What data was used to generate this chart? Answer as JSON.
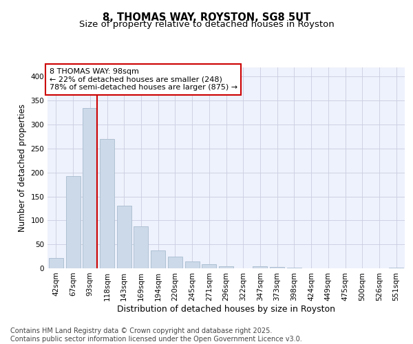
{
  "title": "8, THOMAS WAY, ROYSTON, SG8 5UT",
  "subtitle": "Size of property relative to detached houses in Royston",
  "xlabel": "Distribution of detached houses by size in Royston",
  "ylabel": "Number of detached properties",
  "categories": [
    "42sqm",
    "67sqm",
    "93sqm",
    "118sqm",
    "143sqm",
    "169sqm",
    "194sqm",
    "220sqm",
    "245sqm",
    "271sqm",
    "296sqm",
    "322sqm",
    "347sqm",
    "373sqm",
    "398sqm",
    "424sqm",
    "449sqm",
    "475sqm",
    "500sqm",
    "526sqm",
    "551sqm"
  ],
  "values": [
    22,
    193,
    335,
    270,
    130,
    87,
    38,
    25,
    15,
    8,
    5,
    0,
    4,
    3,
    1,
    0,
    0,
    0,
    0,
    0,
    2
  ],
  "bar_color": "#ccd9e8",
  "bar_edge_color": "#a8bcd0",
  "red_line_index": 2,
  "annotation_text": "8 THOMAS WAY: 98sqm\n← 22% of detached houses are smaller (248)\n78% of semi-detached houses are larger (875) →",
  "annotation_box_color": "#ffffff",
  "annotation_box_edge_color": "#cc0000",
  "red_line_color": "#cc0000",
  "ylim": [
    0,
    420
  ],
  "yticks": [
    0,
    50,
    100,
    150,
    200,
    250,
    300,
    350,
    400
  ],
  "grid_color": "#c8cce0",
  "bg_color": "#eef2fc",
  "footer_text": "Contains HM Land Registry data © Crown copyright and database right 2025.\nContains public sector information licensed under the Open Government Licence v3.0.",
  "title_fontsize": 10.5,
  "subtitle_fontsize": 9.5,
  "xlabel_fontsize": 9,
  "ylabel_fontsize": 8.5,
  "tick_fontsize": 7.5,
  "footer_fontsize": 7,
  "annot_fontsize": 8
}
